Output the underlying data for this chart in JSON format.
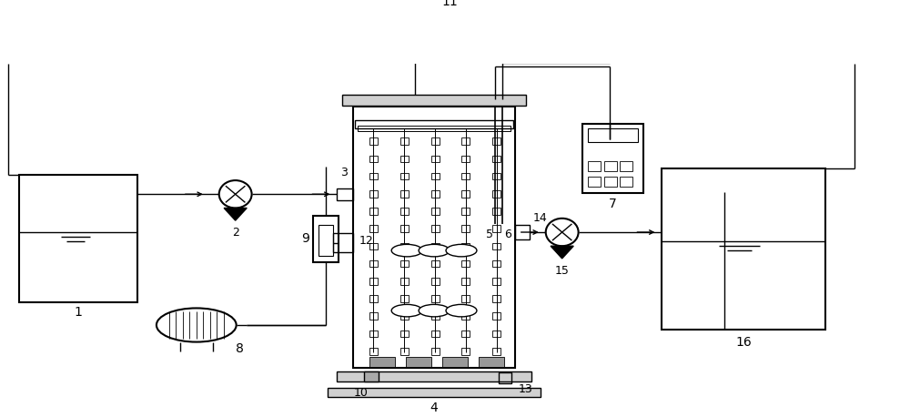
{
  "bg_color": "#ffffff",
  "line_color": "#000000",
  "lw": 1.0,
  "lw2": 1.5,
  "fig_width": 10.0,
  "fig_height": 4.58
}
